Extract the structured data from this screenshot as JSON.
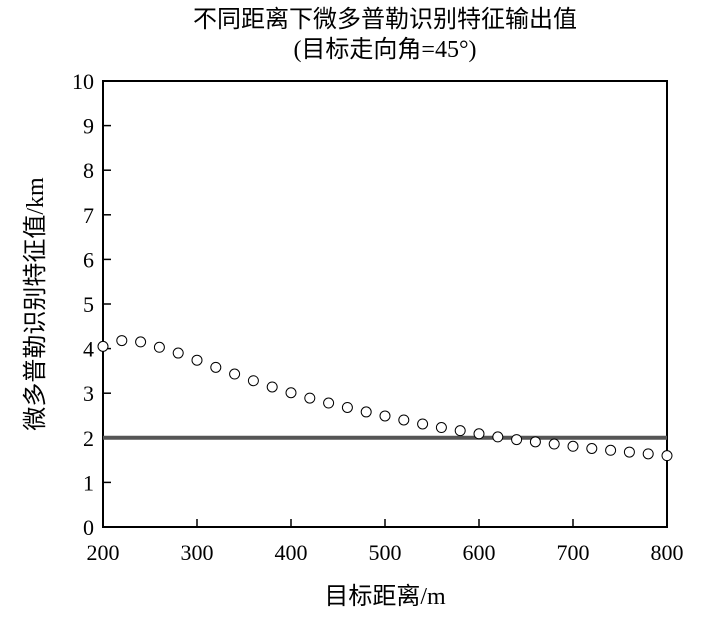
{
  "chart_data": {
    "type": "scatter",
    "title": "不同距离下微多普勒识别特征输出值",
    "subtitle": "(目标走向角=45°)",
    "xlabel": "目标距离/m",
    "ylabel": "微多普勒识别特征值/km",
    "xlim": [
      200,
      800
    ],
    "ylim": [
      0,
      10
    ],
    "xticks": [
      200,
      300,
      400,
      500,
      600,
      700,
      800
    ],
    "yticks": [
      0,
      1,
      2,
      3,
      4,
      5,
      6,
      7,
      8,
      9,
      10
    ],
    "grid": false,
    "series": [
      {
        "marker": "open-circle",
        "x": [
          200,
          220,
          240,
          260,
          280,
          300,
          320,
          340,
          360,
          380,
          400,
          420,
          440,
          460,
          480,
          500,
          520,
          540,
          560,
          580,
          600,
          620,
          640,
          660,
          680,
          700,
          720,
          740,
          760,
          780,
          800
        ],
        "y": [
          4.05,
          4.18,
          4.15,
          4.03,
          3.9,
          3.74,
          3.58,
          3.43,
          3.28,
          3.14,
          3.01,
          2.89,
          2.78,
          2.68,
          2.58,
          2.49,
          2.4,
          2.31,
          2.23,
          2.16,
          2.09,
          2.02,
          1.96,
          1.91,
          1.86,
          1.81,
          1.76,
          1.72,
          1.68,
          1.64,
          1.6
        ]
      }
    ],
    "threshold": {
      "y": 2.0,
      "color": "#555555"
    }
  }
}
